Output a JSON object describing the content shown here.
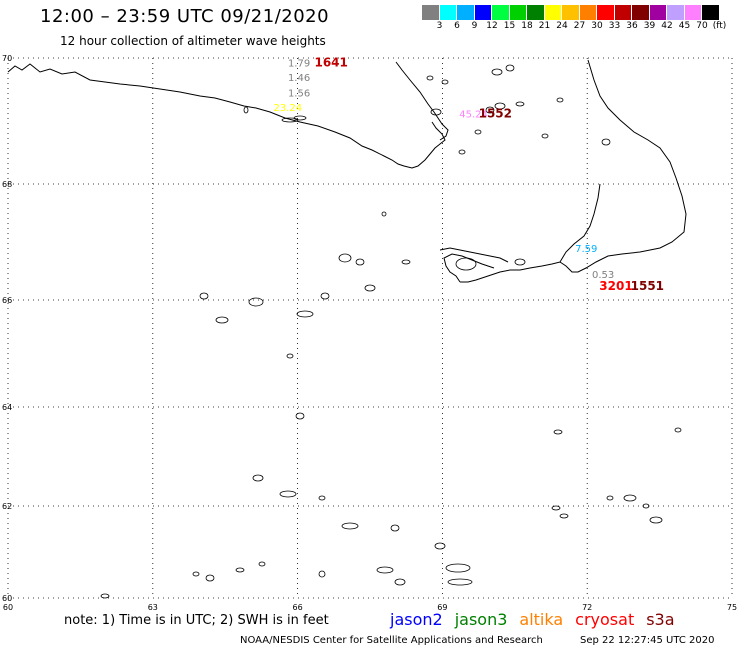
{
  "title": "12:00 – 23:59 UTC 09/21/2020",
  "subtitle": "12 hour collection of altimeter wave heights",
  "legend": {
    "colors": [
      "#808080",
      "#00ffff",
      "#00b0ff",
      "#0000ff",
      "#00ff40",
      "#00d000",
      "#008000",
      "#ffff00",
      "#ffc000",
      "#ff8000",
      "#ff0000",
      "#c00000",
      "#800000",
      "#a000a0",
      "#c0a0ff",
      "#ff80ff",
      "#000000"
    ],
    "labels": [
      "3",
      "6",
      "9",
      "12",
      "15",
      "18",
      "21",
      "24",
      "27",
      "30",
      "33",
      "36",
      "39",
      "42",
      "45",
      "70",
      "(ft)"
    ]
  },
  "map": {
    "lat_labels": [
      "70",
      "68",
      "66",
      "64",
      "62",
      "60"
    ],
    "lon_labels": [
      "60",
      "63",
      "66",
      "69",
      "72",
      "75"
    ],
    "wave_labels": [
      {
        "text": "1.79",
        "color": "#808080",
        "lon": 65.8,
        "lat": 69.93
      },
      {
        "text": "1641",
        "color": "#c00000",
        "lon": 66.35,
        "lat": 69.93
      },
      {
        "text": "1.46",
        "color": "#808080",
        "lon": 65.8,
        "lat": 69.7
      },
      {
        "text": "1.56",
        "color": "#808080",
        "lon": 65.8,
        "lat": 69.45
      },
      {
        "text": "23.24",
        "color": "#ffff00",
        "lon": 65.5,
        "lat": 69.22
      },
      {
        "text": "45.24",
        "color": "#ff80ff",
        "lon": 69.35,
        "lat": 69.12
      },
      {
        "text": "1552",
        "color": "#800000",
        "lon": 69.75,
        "lat": 69.12
      },
      {
        "text": "7.59",
        "color": "#00b0ff",
        "lon": 71.75,
        "lat": 66.9
      },
      {
        "text": "0.53",
        "color": "#808080",
        "lon": 72.1,
        "lat": 66.45
      },
      {
        "text": "3201",
        "color": "#ff0000",
        "lon": 72.25,
        "lat": 66.24
      },
      {
        "text": "1551",
        "color": "#800000",
        "lon": 72.9,
        "lat": 66.24
      }
    ]
  },
  "note": "note: 1) Time is in UTC; 2) SWH is in feet",
  "satellites": [
    {
      "name": "jason2",
      "color": "#0000ff"
    },
    {
      "name": "jason3",
      "color": "#008000"
    },
    {
      "name": "altika",
      "color": "#ff8000"
    },
    {
      "name": "cryosat",
      "color": "#ff0000"
    },
    {
      "name": "s3a",
      "color": "#800000"
    }
  ],
  "credit": "NOAA/NESDIS Center for Satellite Applications and Research",
  "timestamp": "Sep 22 12:27:45 UTC 2020"
}
